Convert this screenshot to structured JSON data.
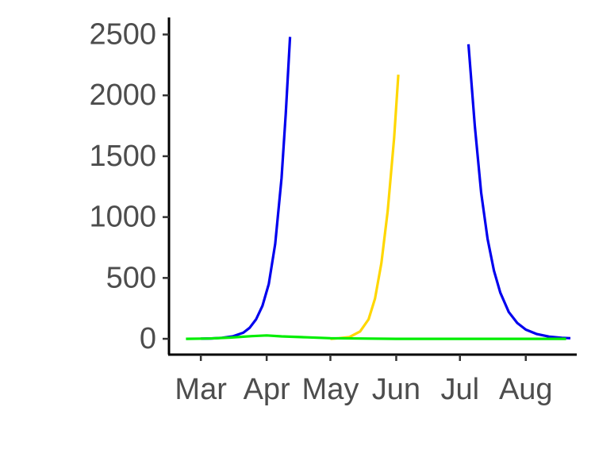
{
  "chart_data": {
    "type": "line",
    "title": "",
    "xlabel": "",
    "ylabel": "",
    "x_axis_type": "date",
    "x_ticks": [
      {
        "label": "Mar",
        "date": "2020-03-01"
      },
      {
        "label": "Apr",
        "date": "2020-04-01"
      },
      {
        "label": "May",
        "date": "2020-05-01"
      },
      {
        "label": "Jun",
        "date": "2020-06-01"
      },
      {
        "label": "Jul",
        "date": "2020-07-01"
      },
      {
        "label": "Aug",
        "date": "2020-08-01"
      }
    ],
    "y_ticks": [
      0,
      500,
      1000,
      1500,
      2000,
      2500
    ],
    "xlim": [
      "2020-02-15",
      "2020-08-25"
    ],
    "ylim": [
      -130,
      2640
    ],
    "grid": false,
    "legend": "none",
    "series": [
      {
        "color": "#0000ee",
        "points": [
          [
            "2020-03-01",
            1
          ],
          [
            "2020-03-06",
            3
          ],
          [
            "2020-03-11",
            8
          ],
          [
            "2020-03-16",
            20
          ],
          [
            "2020-03-21",
            50
          ],
          [
            "2020-03-24",
            90
          ],
          [
            "2020-03-27",
            160
          ],
          [
            "2020-03-30",
            270
          ],
          [
            "2020-04-02",
            450
          ],
          [
            "2020-04-05",
            780
          ],
          [
            "2020-04-08",
            1320
          ],
          [
            "2020-04-10",
            1850
          ],
          [
            "2020-04-12",
            2480
          ]
        ]
      },
      {
        "color": "#ffd700",
        "points": [
          [
            "2020-05-01",
            0
          ],
          [
            "2020-05-05",
            5
          ],
          [
            "2020-05-10",
            15
          ],
          [
            "2020-05-15",
            60
          ],
          [
            "2020-05-19",
            160
          ],
          [
            "2020-05-22",
            330
          ],
          [
            "2020-05-25",
            620
          ],
          [
            "2020-05-28",
            1050
          ],
          [
            "2020-05-31",
            1650
          ],
          [
            "2020-06-02",
            2170
          ]
        ]
      },
      {
        "color": "#0000ee",
        "points": [
          [
            "2020-07-05",
            2420
          ],
          [
            "2020-07-08",
            1750
          ],
          [
            "2020-07-11",
            1200
          ],
          [
            "2020-07-14",
            820
          ],
          [
            "2020-07-17",
            560
          ],
          [
            "2020-07-20",
            380
          ],
          [
            "2020-07-24",
            220
          ],
          [
            "2020-07-28",
            130
          ],
          [
            "2020-08-01",
            75
          ],
          [
            "2020-08-06",
            40
          ],
          [
            "2020-08-12",
            18
          ],
          [
            "2020-08-18",
            8
          ],
          [
            "2020-08-22",
            5
          ]
        ]
      },
      {
        "color": "#00ee00",
        "points": [
          [
            "2020-02-23",
            0
          ],
          [
            "2020-03-05",
            2
          ],
          [
            "2020-03-15",
            10
          ],
          [
            "2020-03-25",
            22
          ],
          [
            "2020-04-01",
            28
          ],
          [
            "2020-04-08",
            20
          ],
          [
            "2020-04-20",
            12
          ],
          [
            "2020-05-01",
            5
          ],
          [
            "2020-05-15",
            2
          ],
          [
            "2020-06-01",
            0
          ],
          [
            "2020-07-01",
            0
          ],
          [
            "2020-08-01",
            0
          ],
          [
            "2020-08-20",
            0
          ]
        ]
      }
    ]
  }
}
